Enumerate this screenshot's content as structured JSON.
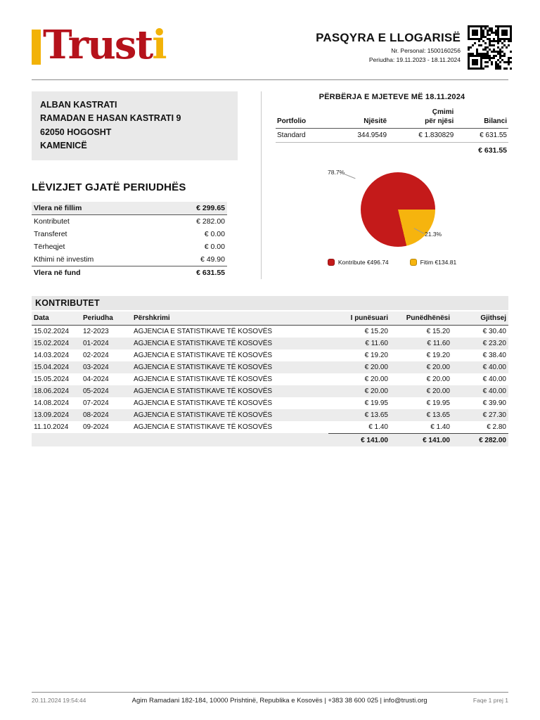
{
  "header": {
    "logo_main": "Trust",
    "logo_accent": "i",
    "title": "PASQYRA E LLOGARISË",
    "personal_label": "Nr. Personal:",
    "personal_value": "1500160256",
    "period_label": "Periudha:",
    "period_value": "19.11.2023 - 18.11.2024"
  },
  "recipient": {
    "line1": "ALBAN KASTRATI",
    "line2": "RAMADAN E  HASAN KASTRATI 9",
    "line3": "62050 HOGOSHT",
    "line4": "KAMENICË"
  },
  "assets": {
    "title": "PËRBËRJA E MJETEVE MË 18.11.2024",
    "col_portfolio": "Portfolio",
    "col_units": "Njësitë",
    "col_price_line1": "Çmimi",
    "col_price_line2": "për njësi",
    "col_balance": "Bilanci",
    "row": {
      "portfolio": "Standard",
      "units": "344.9549",
      "price": "€ 1.830829",
      "balance": "€ 631.55"
    },
    "total": "€ 631.55"
  },
  "chart_data": {
    "type": "pie",
    "title": "PËRBËRJA E MJETEVE MË 18.11.2024",
    "labels": [
      "Kontribute",
      "Fitim"
    ],
    "values_percent": [
      78.7,
      21.3
    ],
    "amounts": [
      "€496.74",
      "€134.81"
    ],
    "slice_labels": [
      "78.7%",
      "21.3%"
    ],
    "colors": [
      "#c41a1a",
      "#f6b40e"
    ],
    "legend": [
      {
        "label": "Kontribute €496.74"
      },
      {
        "label": "Fitim €134.81"
      }
    ],
    "legend_position": "bottom"
  },
  "movements": {
    "title": "LËVIZJET GJATË PERIUDHËS",
    "rows": [
      {
        "label": "Vlera në fillim",
        "value": "€ 299.65"
      },
      {
        "label": "Kontributet",
        "value": "€ 282.00"
      },
      {
        "label": "Transferet",
        "value": "€ 0.00"
      },
      {
        "label": "Tërheqjet",
        "value": "€ 0.00"
      },
      {
        "label": "Kthimi në investim",
        "value": "€ 49.90"
      },
      {
        "label": "Vlera në fund",
        "value": "€ 631.55"
      }
    ]
  },
  "contributions": {
    "title": "KONTRIBUTET",
    "columns": {
      "date": "Data",
      "period": "Periudha",
      "desc": "Përshkrimi",
      "employee": "I punësuari",
      "employer": "Punëdhënësi",
      "total": "Gjithsej"
    },
    "rows": [
      {
        "date": "15.02.2024",
        "period": "12-2023",
        "desc": "AGJENCIA E STATISTIKAVE TË KOSOVËS",
        "employee": "€ 15.20",
        "employer": "€ 15.20",
        "total": "€ 30.40"
      },
      {
        "date": "15.02.2024",
        "period": "01-2024",
        "desc": "AGJENCIA E STATISTIKAVE TË KOSOVËS",
        "employee": "€ 11.60",
        "employer": "€ 11.60",
        "total": "€ 23.20"
      },
      {
        "date": "14.03.2024",
        "period": "02-2024",
        "desc": "AGJENCIA E STATISTIKAVE TË KOSOVËS",
        "employee": "€ 19.20",
        "employer": "€ 19.20",
        "total": "€ 38.40"
      },
      {
        "date": "15.04.2024",
        "period": "03-2024",
        "desc": "AGJENCIA E STATISTIKAVE TË KOSOVËS",
        "employee": "€ 20.00",
        "employer": "€ 20.00",
        "total": "€ 40.00"
      },
      {
        "date": "15.05.2024",
        "period": "04-2024",
        "desc": "AGJENCIA E STATISTIKAVE TË KOSOVËS",
        "employee": "€ 20.00",
        "employer": "€ 20.00",
        "total": "€ 40.00"
      },
      {
        "date": "18.06.2024",
        "period": "05-2024",
        "desc": "AGJENCIA E STATISTIKAVE TË KOSOVËS",
        "employee": "€ 20.00",
        "employer": "€ 20.00",
        "total": "€ 40.00"
      },
      {
        "date": "14.08.2024",
        "period": "07-2024",
        "desc": "AGJENCIA E STATISTIKAVE TË KOSOVËS",
        "employee": "€ 19.95",
        "employer": "€ 19.95",
        "total": "€ 39.90"
      },
      {
        "date": "13.09.2024",
        "period": "08-2024",
        "desc": "AGJENCIA E STATISTIKAVE TË KOSOVËS",
        "employee": "€ 13.65",
        "employer": "€ 13.65",
        "total": "€ 27.30"
      },
      {
        "date": "11.10.2024",
        "period": "09-2024",
        "desc": "AGJENCIA E STATISTIKAVE TË KOSOVËS",
        "employee": "€ 1.40",
        "employer": "€ 1.40",
        "total": "€ 2.80"
      }
    ],
    "totals": {
      "employee": "€ 141.00",
      "employer": "€ 141.00",
      "total": "€ 282.00"
    }
  },
  "footer": {
    "timestamp": "20.11.2024 19:54:44",
    "address": "Agim Ramadani 182-184, 10000 Prishtinë, Republika e Kosovës  |  +383 38 600 025  |  info@trusti.org",
    "page": "Faqe 1 prej 1"
  },
  "colors": {
    "brand_red": "#b5121b",
    "brand_yellow": "#f2b207"
  }
}
